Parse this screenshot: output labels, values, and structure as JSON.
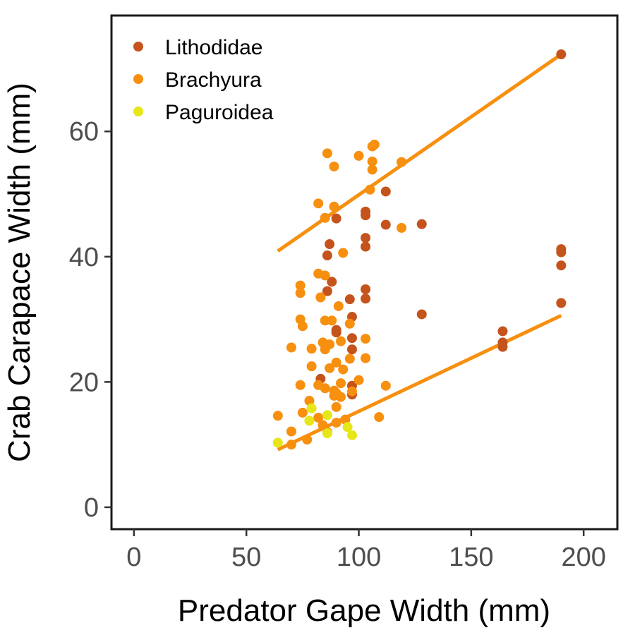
{
  "chart_data": {
    "type": "scatter",
    "xlabel": "Predator Gape Width (mm)",
    "ylabel": "Crab Carapace Width (mm)",
    "xlim": [
      -10,
      215
    ],
    "ylim": [
      -3.5,
      78.5
    ],
    "xticks": [
      0,
      50,
      100,
      150,
      200
    ],
    "yticks": [
      0,
      20,
      40,
      60
    ],
    "xtick_labels": [
      "0",
      "50",
      "100",
      "150",
      "200"
    ],
    "ytick_labels": [
      "0",
      "20",
      "40",
      "60"
    ],
    "grid": false,
    "legend_position": "top-left",
    "series": [
      {
        "name": "Lithodidae",
        "color": "#c4531c",
        "points": [
          [
            190,
            72.3
          ],
          [
            190,
            41.2
          ],
          [
            190,
            40.7
          ],
          [
            190,
            38.6
          ],
          [
            190,
            32.6
          ],
          [
            164,
            28.1
          ],
          [
            164,
            26.3
          ],
          [
            164,
            25.6
          ],
          [
            128,
            45.2
          ],
          [
            128,
            30.8
          ],
          [
            112,
            50.4
          ],
          [
            112,
            45.1
          ],
          [
            103,
            47.2
          ],
          [
            103,
            46.6
          ],
          [
            103,
            43.0
          ],
          [
            103,
            41.6
          ],
          [
            103,
            34.8
          ],
          [
            103,
            33.3
          ],
          [
            97,
            30.4
          ],
          [
            97,
            27.0
          ],
          [
            97,
            25.2
          ],
          [
            97,
            19.4
          ],
          [
            97,
            18.0
          ],
          [
            96,
            33.2
          ],
          [
            90,
            46.1
          ],
          [
            90,
            28.3
          ],
          [
            90,
            27.9
          ],
          [
            88,
            36.0
          ],
          [
            87,
            42.0
          ],
          [
            86,
            40.2
          ],
          [
            86,
            34.5
          ],
          [
            83,
            20.5
          ]
        ]
      },
      {
        "name": "Brachyura",
        "color": "#f78f0f",
        "points": [
          [
            64,
            14.6
          ],
          [
            70,
            25.5
          ],
          [
            70,
            12.1
          ],
          [
            70,
            10.0
          ],
          [
            74,
            35.4
          ],
          [
            74,
            34.2
          ],
          [
            74,
            30.0
          ],
          [
            74,
            19.5
          ],
          [
            75,
            28.9
          ],
          [
            75,
            15.1
          ],
          [
            77,
            10.8
          ],
          [
            78,
            17.0
          ],
          [
            79,
            25.3
          ],
          [
            79,
            22.5
          ],
          [
            82,
            48.5
          ],
          [
            82,
            37.3
          ],
          [
            82,
            19.5
          ],
          [
            82,
            14.3
          ],
          [
            83,
            33.5
          ],
          [
            84,
            26.3
          ],
          [
            84,
            13.1
          ],
          [
            85,
            46.2
          ],
          [
            85,
            37.0
          ],
          [
            85,
            29.8
          ],
          [
            85,
            25.2
          ],
          [
            85,
            19.0
          ],
          [
            86,
            56.5
          ],
          [
            86,
            12.0
          ],
          [
            87,
            26.0
          ],
          [
            87,
            22.2
          ],
          [
            88,
            29.8
          ],
          [
            89,
            54.4
          ],
          [
            89,
            48.0
          ],
          [
            89,
            18.6
          ],
          [
            89,
            17.8
          ],
          [
            90,
            23.1
          ],
          [
            90,
            18.2
          ],
          [
            90,
            16.0
          ],
          [
            90,
            13.5
          ],
          [
            91,
            32.1
          ],
          [
            92,
            26.5
          ],
          [
            92,
            19.8
          ],
          [
            92,
            17.6
          ],
          [
            93,
            40.6
          ],
          [
            93,
            22.0
          ],
          [
            94,
            14.0
          ],
          [
            96,
            29.3
          ],
          [
            96,
            23.7
          ],
          [
            97,
            18.5
          ],
          [
            100,
            56.1
          ],
          [
            100,
            20.3
          ],
          [
            103,
            26.9
          ],
          [
            103,
            23.8
          ],
          [
            105,
            50.7
          ],
          [
            106,
            57.6
          ],
          [
            106,
            55.2
          ],
          [
            106,
            53.9
          ],
          [
            107,
            57.9
          ],
          [
            109,
            14.4
          ],
          [
            112,
            19.4
          ],
          [
            119,
            55.1
          ],
          [
            119,
            44.6
          ]
        ]
      },
      {
        "name": "Paguroidea",
        "color": "#e6e619",
        "points": [
          [
            64,
            10.3
          ],
          [
            78,
            13.8
          ],
          [
            79,
            15.8
          ],
          [
            86,
            11.8
          ],
          [
            86,
            14.7
          ],
          [
            95,
            12.8
          ],
          [
            97,
            11.5
          ]
        ]
      }
    ],
    "fit_lines": [
      {
        "color": "#f78f0f",
        "x": [
          64,
          190
        ],
        "y": [
          40.9,
          72.3
        ]
      },
      {
        "color": "#f78f0f",
        "x": [
          64,
          190
        ],
        "y": [
          9.2,
          30.6
        ]
      }
    ]
  }
}
